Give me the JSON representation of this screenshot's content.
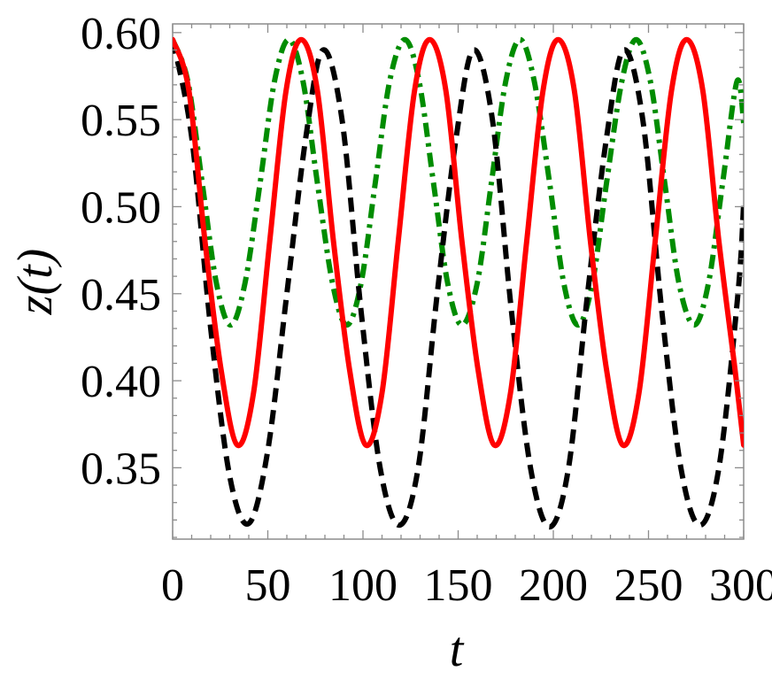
{
  "chart_data": {
    "type": "line",
    "title": "",
    "xlabel": "t",
    "ylabel": "z(t)",
    "xlim": [
      0,
      300
    ],
    "ylim": [
      0.309,
      0.605
    ],
    "xticks": [
      0,
      50,
      100,
      150,
      200,
      250,
      300
    ],
    "yticks": [
      0.35,
      0.4,
      0.45,
      0.5,
      0.55,
      0.6
    ],
    "xtick_labels": [
      "0",
      "50",
      "100",
      "150",
      "200",
      "250",
      "300"
    ],
    "ytick_labels": [
      "0.35",
      "0.40",
      "0.45",
      "0.50",
      "0.55",
      "0.60"
    ],
    "grid": false,
    "legend": "none",
    "series": [
      {
        "color": "#ff0000",
        "dash": "solid",
        "x": [
          0,
          8.5,
          17,
          25.5,
          34,
          42.5,
          51,
          59.5,
          67.5,
          76,
          84.5,
          93,
          101.5,
          110,
          118.5,
          127,
          135,
          143.5,
          152,
          160.5,
          169,
          177.5,
          186,
          194.5,
          202.5,
          211,
          219.5,
          228,
          236.5,
          245,
          253.5,
          262,
          270,
          278.5,
          287,
          295.5,
          300
        ],
        "y": [
          0.596,
          0.567,
          0.48,
          0.406,
          0.363,
          0.393,
          0.48,
          0.566,
          0.596,
          0.567,
          0.48,
          0.406,
          0.363,
          0.393,
          0.48,
          0.566,
          0.596,
          0.567,
          0.48,
          0.406,
          0.363,
          0.393,
          0.48,
          0.566,
          0.596,
          0.567,
          0.48,
          0.406,
          0.363,
          0.393,
          0.48,
          0.566,
          0.596,
          0.567,
          0.48,
          0.406,
          0.363
        ]
      },
      {
        "color": "#000000",
        "dash": "dashed",
        "x": [
          0,
          10,
          20,
          30,
          40,
          50,
          60,
          70,
          79,
          89,
          99,
          109,
          119,
          129,
          139,
          149,
          158,
          168,
          178,
          188,
          198,
          208,
          218,
          228,
          237,
          247,
          257,
          267,
          277,
          287,
          297,
          300
        ],
        "y": [
          0.596,
          0.54,
          0.43,
          0.345,
          0.318,
          0.36,
          0.45,
          0.54,
          0.59,
          0.55,
          0.44,
          0.35,
          0.317,
          0.35,
          0.45,
          0.54,
          0.59,
          0.55,
          0.44,
          0.35,
          0.316,
          0.35,
          0.45,
          0.54,
          0.59,
          0.55,
          0.44,
          0.35,
          0.317,
          0.35,
          0.45,
          0.502
        ]
      },
      {
        "color": "#008c00",
        "dash": "dashdot",
        "x": [
          0,
          8,
          15.5,
          23,
          30.5,
          38,
          46,
          53.5,
          61,
          68.5,
          76,
          84,
          91.5,
          99,
          106.5,
          114,
          122,
          129.5,
          137,
          144.5,
          152,
          160,
          167.5,
          175,
          182.5,
          190,
          198,
          205.5,
          213,
          220.5,
          228,
          236,
          243.5,
          251,
          258.5,
          266,
          274,
          281.5,
          289,
          296.5,
          300
        ],
        "y": [
          0.596,
          0.572,
          0.514,
          0.456,
          0.432,
          0.456,
          0.514,
          0.572,
          0.596,
          0.572,
          0.514,
          0.456,
          0.432,
          0.456,
          0.514,
          0.572,
          0.596,
          0.572,
          0.514,
          0.456,
          0.432,
          0.456,
          0.514,
          0.572,
          0.596,
          0.572,
          0.514,
          0.456,
          0.432,
          0.456,
          0.514,
          0.572,
          0.596,
          0.572,
          0.514,
          0.456,
          0.432,
          0.456,
          0.514,
          0.572,
          0.548
        ]
      }
    ]
  }
}
